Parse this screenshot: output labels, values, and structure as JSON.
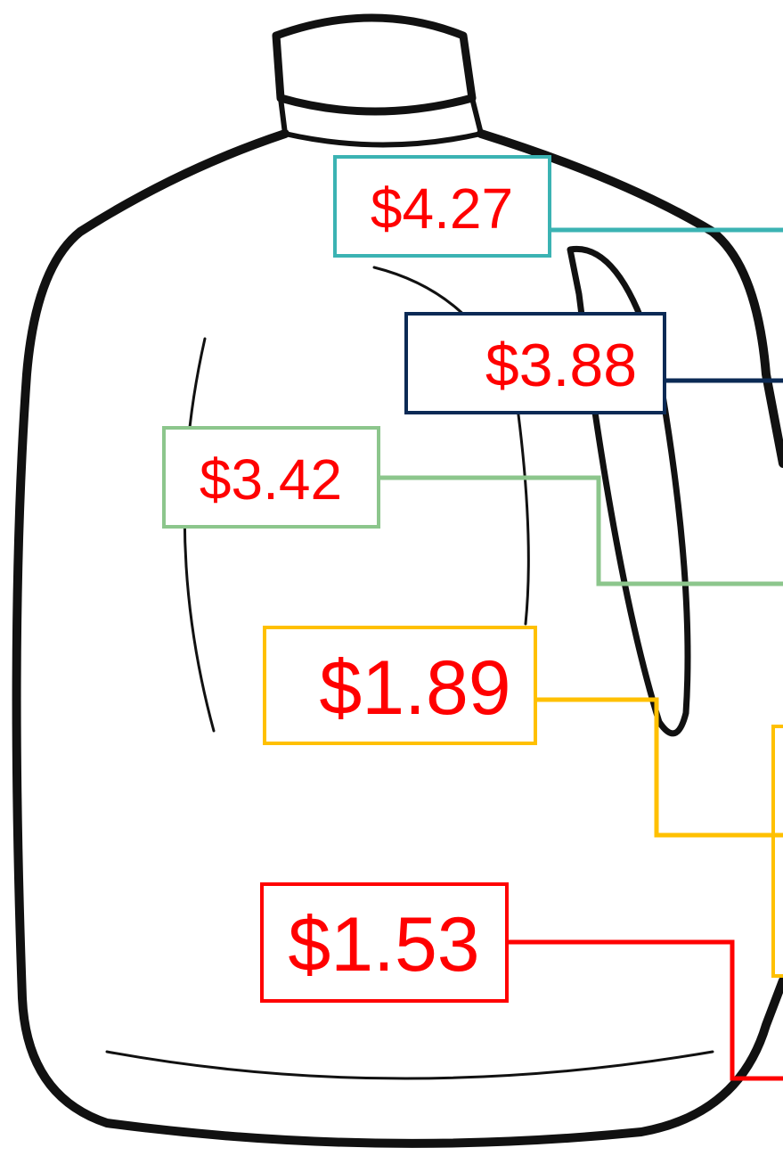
{
  "callouts": [
    {
      "label": "$4.27"
    },
    {
      "label": "$3.88"
    },
    {
      "label": "$3.42"
    },
    {
      "label": "$1.89"
    },
    {
      "label": "$1.53"
    }
  ]
}
